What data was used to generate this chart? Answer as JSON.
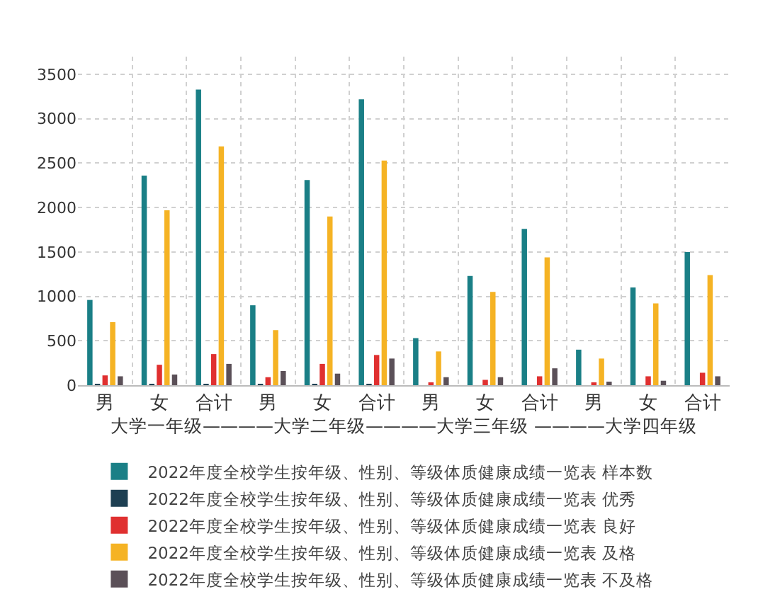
{
  "chart_data": {
    "type": "bar",
    "categories": [
      "男",
      "女",
      "合计",
      "男",
      "女",
      "合计",
      "男",
      "女",
      "合计",
      "男",
      "女",
      "合计"
    ],
    "xlabel": "大学一年级————大学二年级————大学三年级 ————大学四年级",
    "series": [
      {
        "name": "2022年度全校学生按年级、性别、等级体质健康成绩一览表 样本数",
        "color": "#1a7f86",
        "values": [
          960,
          2360,
          3330,
          900,
          2310,
          3220,
          530,
          1230,
          1760,
          400,
          1100,
          1500
        ]
      },
      {
        "name": "2022年度全校学生按年级、性别、等级体质健康成绩一览表 优秀",
        "color": "#1d3f52",
        "values": [
          10,
          10,
          10,
          10,
          10,
          10,
          0,
          0,
          0,
          0,
          0,
          0
        ]
      },
      {
        "name": "2022年度全校学生按年级、性别、等级体质健康成绩一览表 良好",
        "color": "#e03030",
        "values": [
          110,
          230,
          350,
          90,
          240,
          340,
          30,
          60,
          100,
          30,
          100,
          140
        ]
      },
      {
        "name": "2022年度全校学生按年级、性别、等级体质健康成绩一览表 及格",
        "color": "#f5b324",
        "values": [
          710,
          1970,
          2690,
          620,
          1900,
          2530,
          380,
          1050,
          1440,
          300,
          920,
          1240
        ]
      },
      {
        "name": "2022年度全校学生按年级、性别、等级体质健康成绩一览表 不及格",
        "color": "#5b5058",
        "values": [
          100,
          120,
          240,
          160,
          130,
          300,
          90,
          90,
          190,
          40,
          50,
          100
        ]
      }
    ],
    "ylim": [
      0,
      3700
    ],
    "yticks": [
      0,
      500,
      1000,
      1500,
      2000,
      2500,
      3000,
      3500
    ],
    "grid": true,
    "legend": "bottom"
  }
}
